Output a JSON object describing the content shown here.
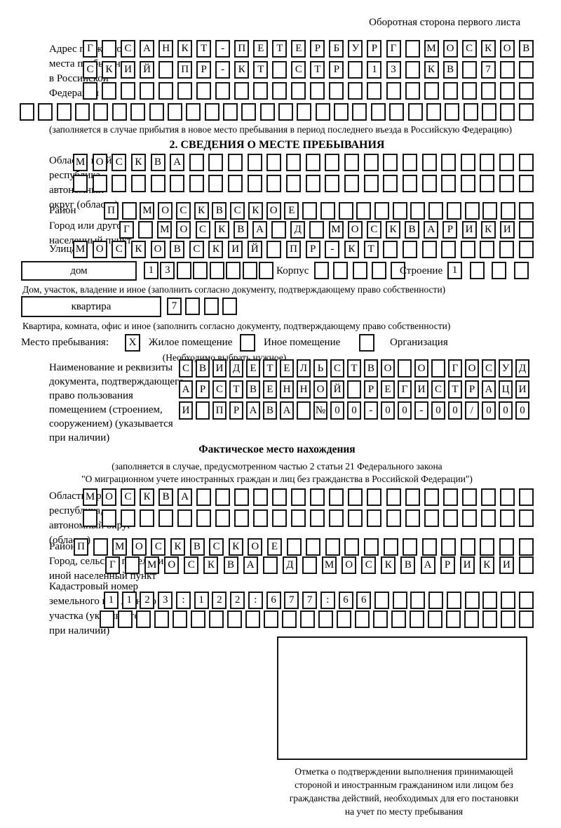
{
  "colors": {
    "ink": "#161616",
    "paper": "#ffffff"
  },
  "corner_note": "Оборотная сторона первого листа",
  "prev_address": {
    "label": "Адрес прежнего\nместа пребывания\nв Российской\nФедерации",
    "rows": [
      "Г САНКТ-ПЕТЕРБУРГ МОСКОВ",
      "СКИЙ ПР-КТ СТР 13 КВ 7  ",
      "                        ",
      "                            "
    ],
    "note": "(заполняется в случае прибытия в новое место пребывания в период последнего въезда в Российскую Федерацию)"
  },
  "section2": {
    "title": "2. СВЕДЕНИЯ О МЕСТЕ ПРЕБЫВАНИЯ",
    "region": {
      "label": "Область, край,\nреспублика,\nавтономный\nокруг (область)",
      "rows": [
        "МОСКВА                  ",
        "                        "
      ]
    },
    "district": {
      "label": "Район",
      "row": "П МОСКВСКОЕ             "
    },
    "city": {
      "label": "Город или другой\nнаселенный пункт",
      "row": "Г МОСКВА Д МОСКВАРИКИ "
    },
    "street": {
      "label": "Улица",
      "row": "МОСКОВСКИЙ ПР-КТ        "
    },
    "house": {
      "box_label": "дом",
      "cells": "13      ",
      "korpus_label": "Корпус",
      "korpus_cells": "     ",
      "stroenie_label": "Строение",
      "stroenie_cells": "1   ",
      "note": "Дом, участок, владение и иное (заполнить согласно документу, подтверждающему право собственности)"
    },
    "flat": {
      "box_label": "квартира",
      "cells": "7   ",
      "note": "Квартира, комната, офис и иное (заполнить согласно документу, подтверждающему право собственности)"
    },
    "stay": {
      "label": "Место пребывания:",
      "options": [
        {
          "mark": "X",
          "label": "Жилое помещение"
        },
        {
          "mark": "",
          "label": "Иное помещение"
        },
        {
          "mark": "",
          "label": "Организация"
        }
      ],
      "choose_note": "(Необходимо выбрать нужное)"
    },
    "doc": {
      "label": "Наименование и реквизиты\nдокумента, подтверждающего\nправо пользования\nпомещением (строением,\nсооружением) (указывается\nпри наличии)",
      "rows": [
        "СВИДЕТЕЛЬСТВО О ГОСУД",
        "АРСТВЕННОЙ РЕГИСТРАЦИ",
        "И ПРАВА №00-00-00/000"
      ]
    }
  },
  "actual_location": {
    "title": "Фактическое место нахождения",
    "note_line1": "(заполняется в случае, предусмотренном частью 2 статьи 21 Федерального закона",
    "note_line2": "\"О миграционном учете иностранных граждан и лиц без гражданства в Российской Федерации\")",
    "region": {
      "label": "Область, край,\nреспублика,\nавтономный округ\n(область)",
      "rows": [
        "МОСКВА                  ",
        "                        "
      ]
    },
    "district": {
      "label": "Район",
      "row": "П МОСКВСКОЕ             "
    },
    "city": {
      "label": "Город, сельское поселение,\nиной населенный пункт",
      "row": "Г МОСКВА Д МОСКВАРИКИ "
    },
    "cadastral": {
      "label": "Кадастровый номер\nземельного или лесного\nучастка (указывается\nпри наличии)",
      "rows": [
        "1123:122:677:66         ",
        "                        "
      ]
    }
  },
  "stamp": {
    "caption": "Отметка о подтверждении выполнения принимающей\nстороной и иностранным гражданином или лицом без\nгражданства действий, необходимых для его постановки\nна учет по месту пребывания"
  }
}
